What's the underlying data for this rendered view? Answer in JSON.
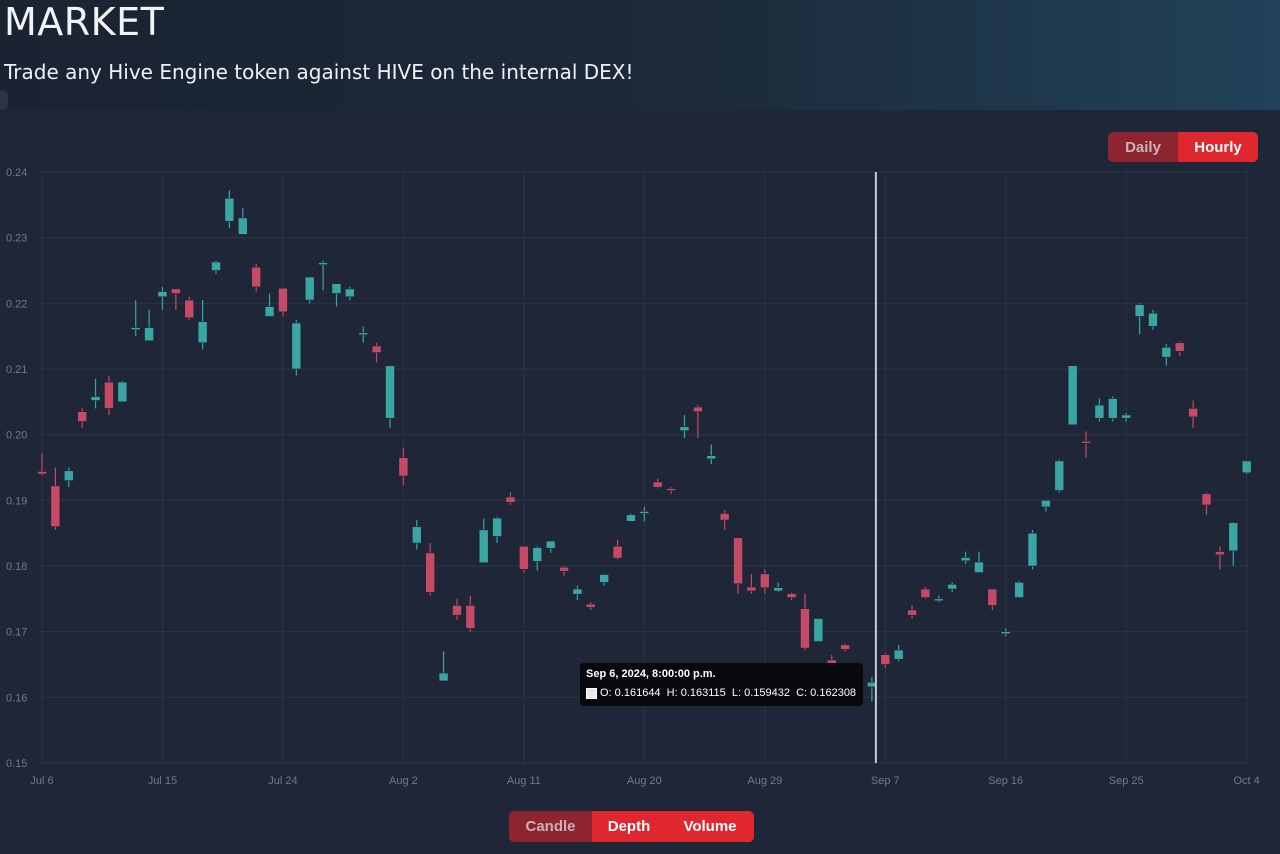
{
  "header": {
    "title": "MARKET",
    "subtitle": "Trade any Hive Engine token against HIVE on the internal DEX!"
  },
  "interval_toggle": {
    "options": [
      "Daily",
      "Hourly"
    ],
    "selected": "Hourly"
  },
  "view_toggle": {
    "options": [
      "Candle",
      "Depth",
      "Volume"
    ],
    "selected": "Candle"
  },
  "tooltip": {
    "date": "Sep 6, 2024, 8:00:00 p.m.",
    "values": "O: 0.161644  H: 0.163115  L: 0.159432  C: 0.162308"
  },
  "colors": {
    "up": "#3aa6a4",
    "down": "#c44a66",
    "accent": "#e0262e",
    "grid": "#2c3548",
    "crosshair": "#c8cdd4"
  },
  "chart_data": {
    "type": "candlestick",
    "title": "",
    "ylim": [
      0.15,
      0.24
    ],
    "y_ticks": [
      "0.15",
      "0.16",
      "0.17",
      "0.18",
      "0.19",
      "0.20",
      "0.21",
      "0.22",
      "0.23",
      "0.24"
    ],
    "x_ticks": [
      "Jul 6",
      "Jul 15",
      "Jul 24",
      "Aug 2",
      "Aug 11",
      "Aug 20",
      "Aug 29",
      "Sep 7",
      "Sep 16",
      "Sep 25",
      "Oct 4"
    ],
    "x_range_days": [
      -0.15,
      90.1
    ],
    "crosshair_day": 62.3,
    "grid": true,
    "candles": [
      {
        "d": 0,
        "o": 0.1944,
        "h": 0.1972,
        "l": 0.1938,
        "c": 0.194
      },
      {
        "d": 1,
        "o": 0.1922,
        "h": 0.195,
        "l": 0.1855,
        "c": 0.186
      },
      {
        "d": 2,
        "o": 0.193,
        "h": 0.195,
        "l": 0.192,
        "c": 0.1945
      },
      {
        "d": 3,
        "o": 0.2035,
        "h": 0.204,
        "l": 0.201,
        "c": 0.202
      },
      {
        "d": 4,
        "o": 0.2052,
        "h": 0.2085,
        "l": 0.204,
        "c": 0.2058
      },
      {
        "d": 5,
        "o": 0.208,
        "h": 0.209,
        "l": 0.203,
        "c": 0.204
      },
      {
        "d": 6,
        "o": 0.205,
        "h": 0.2082,
        "l": 0.205,
        "c": 0.208
      },
      {
        "d": 7,
        "o": 0.216,
        "h": 0.2205,
        "l": 0.215,
        "c": 0.2163
      },
      {
        "d": 8,
        "o": 0.2143,
        "h": 0.219,
        "l": 0.2143,
        "c": 0.2163
      },
      {
        "d": 9,
        "o": 0.221,
        "h": 0.2225,
        "l": 0.219,
        "c": 0.2218
      },
      {
        "d": 10,
        "o": 0.2222,
        "h": 0.2222,
        "l": 0.219,
        "c": 0.2215
      },
      {
        "d": 11,
        "o": 0.2205,
        "h": 0.221,
        "l": 0.2175,
        "c": 0.2178
      },
      {
        "d": 12,
        "o": 0.214,
        "h": 0.2205,
        "l": 0.213,
        "c": 0.2172
      },
      {
        "d": 13,
        "o": 0.225,
        "h": 0.2265,
        "l": 0.2245,
        "c": 0.2263
      },
      {
        "d": 14,
        "o": 0.2325,
        "h": 0.2372,
        "l": 0.2315,
        "c": 0.236
      },
      {
        "d": 15,
        "o": 0.2305,
        "h": 0.2345,
        "l": 0.2305,
        "c": 0.233
      },
      {
        "d": 16,
        "o": 0.2255,
        "h": 0.226,
        "l": 0.2218,
        "c": 0.2225
      },
      {
        "d": 17,
        "o": 0.218,
        "h": 0.2215,
        "l": 0.218,
        "c": 0.2195
      },
      {
        "d": 18,
        "o": 0.2223,
        "h": 0.2223,
        "l": 0.218,
        "c": 0.2187
      },
      {
        "d": 19,
        "o": 0.21,
        "h": 0.2175,
        "l": 0.209,
        "c": 0.217
      },
      {
        "d": 20,
        "o": 0.2205,
        "h": 0.224,
        "l": 0.22,
        "c": 0.224
      },
      {
        "d": 21,
        "o": 0.2262,
        "h": 0.2265,
        "l": 0.222,
        "c": 0.2262
      },
      {
        "d": 22,
        "o": 0.2215,
        "h": 0.223,
        "l": 0.2195,
        "c": 0.223
      },
      {
        "d": 23,
        "o": 0.221,
        "h": 0.2225,
        "l": 0.2205,
        "c": 0.2222
      },
      {
        "d": 24,
        "o": 0.2155,
        "h": 0.2165,
        "l": 0.214,
        "c": 0.2155
      },
      {
        "d": 25,
        "o": 0.2135,
        "h": 0.214,
        "l": 0.211,
        "c": 0.2125
      },
      {
        "d": 26,
        "o": 0.2025,
        "h": 0.2105,
        "l": 0.201,
        "c": 0.2105
      },
      {
        "d": 27,
        "o": 0.1965,
        "h": 0.198,
        "l": 0.1923,
        "c": 0.1937
      },
      {
        "d": 28,
        "o": 0.1835,
        "h": 0.187,
        "l": 0.1825,
        "c": 0.186
      },
      {
        "d": 29,
        "o": 0.182,
        "h": 0.1835,
        "l": 0.1755,
        "c": 0.176
      },
      {
        "d": 30,
        "o": 0.1625,
        "h": 0.167,
        "l": 0.1625,
        "c": 0.1637
      },
      {
        "d": 31,
        "o": 0.174,
        "h": 0.175,
        "l": 0.1718,
        "c": 0.1725
      },
      {
        "d": 32,
        "o": 0.174,
        "h": 0.1755,
        "l": 0.17,
        "c": 0.1705
      },
      {
        "d": 33,
        "o": 0.1805,
        "h": 0.1872,
        "l": 0.1805,
        "c": 0.1855
      },
      {
        "d": 34,
        "o": 0.1845,
        "h": 0.1875,
        "l": 0.1835,
        "c": 0.1873
      },
      {
        "d": 35,
        "o": 0.1905,
        "h": 0.1912,
        "l": 0.1893,
        "c": 0.1897
      },
      {
        "d": 36,
        "o": 0.183,
        "h": 0.183,
        "l": 0.179,
        "c": 0.1795
      },
      {
        "d": 37,
        "o": 0.1807,
        "h": 0.183,
        "l": 0.1793,
        "c": 0.1828
      },
      {
        "d": 38,
        "o": 0.1827,
        "h": 0.1838,
        "l": 0.182,
        "c": 0.1838
      },
      {
        "d": 39,
        "o": 0.1798,
        "h": 0.18,
        "l": 0.1785,
        "c": 0.1792
      },
      {
        "d": 40,
        "o": 0.1757,
        "h": 0.177,
        "l": 0.1748,
        "c": 0.1765
      },
      {
        "d": 41,
        "o": 0.1742,
        "h": 0.1745,
        "l": 0.1733,
        "c": 0.1737
      },
      {
        "d": 42,
        "o": 0.1775,
        "h": 0.1788,
        "l": 0.177,
        "c": 0.1787
      },
      {
        "d": 43,
        "o": 0.183,
        "h": 0.184,
        "l": 0.181,
        "c": 0.1812
      },
      {
        "d": 44,
        "o": 0.1868,
        "h": 0.188,
        "l": 0.1868,
        "c": 0.1878
      },
      {
        "d": 45,
        "o": 0.188,
        "h": 0.189,
        "l": 0.1868,
        "c": 0.1883
      },
      {
        "d": 46,
        "o": 0.1928,
        "h": 0.1933,
        "l": 0.1918,
        "c": 0.192
      },
      {
        "d": 47,
        "o": 0.1918,
        "h": 0.192,
        "l": 0.191,
        "c": 0.1915
      },
      {
        "d": 48,
        "o": 0.2006,
        "h": 0.203,
        "l": 0.1995,
        "c": 0.2012
      },
      {
        "d": 49,
        "o": 0.2042,
        "h": 0.2045,
        "l": 0.1995,
        "c": 0.2035
      },
      {
        "d": 50,
        "o": 0.1963,
        "h": 0.1985,
        "l": 0.1955,
        "c": 0.1968
      },
      {
        "d": 51,
        "o": 0.188,
        "h": 0.1885,
        "l": 0.1855,
        "c": 0.187
      },
      {
        "d": 52,
        "o": 0.1843,
        "h": 0.1843,
        "l": 0.1758,
        "c": 0.1773
      },
      {
        "d": 53,
        "o": 0.1768,
        "h": 0.1788,
        "l": 0.1758,
        "c": 0.1762
      },
      {
        "d": 54,
        "o": 0.1788,
        "h": 0.1795,
        "l": 0.1758,
        "c": 0.1767
      },
      {
        "d": 55,
        "o": 0.1762,
        "h": 0.1775,
        "l": 0.176,
        "c": 0.1767
      },
      {
        "d": 56,
        "o": 0.1758,
        "h": 0.176,
        "l": 0.1748,
        "c": 0.1752
      },
      {
        "d": 57,
        "o": 0.1735,
        "h": 0.1758,
        "l": 0.1672,
        "c": 0.1675
      },
      {
        "d": 58,
        "o": 0.1685,
        "h": 0.172,
        "l": 0.1685,
        "c": 0.172
      },
      {
        "d": 59,
        "o": 0.1657,
        "h": 0.1665,
        "l": 0.1645,
        "c": 0.165
      },
      {
        "d": 60,
        "o": 0.168,
        "h": 0.1682,
        "l": 0.167,
        "c": 0.1673
      },
      {
        "d": 61,
        "o": 0.1648,
        "h": 0.165,
        "l": 0.163,
        "c": 0.1637
      },
      {
        "d": 62,
        "o": 0.1616,
        "h": 0.1631,
        "l": 0.1594,
        "c": 0.1623
      },
      {
        "d": 63,
        "o": 0.1665,
        "h": 0.1667,
        "l": 0.1645,
        "c": 0.165
      },
      {
        "d": 64,
        "o": 0.1658,
        "h": 0.168,
        "l": 0.1655,
        "c": 0.1672
      },
      {
        "d": 65,
        "o": 0.1733,
        "h": 0.174,
        "l": 0.172,
        "c": 0.1725
      },
      {
        "d": 66,
        "o": 0.1765,
        "h": 0.1768,
        "l": 0.175,
        "c": 0.1752
      },
      {
        "d": 67,
        "o": 0.175,
        "h": 0.1755,
        "l": 0.1745,
        "c": 0.175
      },
      {
        "d": 68,
        "o": 0.1765,
        "h": 0.1775,
        "l": 0.176,
        "c": 0.1772
      },
      {
        "d": 69,
        "o": 0.1808,
        "h": 0.1822,
        "l": 0.1803,
        "c": 0.1813
      },
      {
        "d": 70,
        "o": 0.179,
        "h": 0.1822,
        "l": 0.179,
        "c": 0.1806
      },
      {
        "d": 71,
        "o": 0.1765,
        "h": 0.1765,
        "l": 0.1733,
        "c": 0.174
      },
      {
        "d": 72,
        "o": 0.1698,
        "h": 0.1705,
        "l": 0.1693,
        "c": 0.17
      },
      {
        "d": 73,
        "o": 0.1752,
        "h": 0.1777,
        "l": 0.1752,
        "c": 0.1775
      },
      {
        "d": 74,
        "o": 0.18,
        "h": 0.1855,
        "l": 0.1795,
        "c": 0.185
      },
      {
        "d": 75,
        "o": 0.189,
        "h": 0.19,
        "l": 0.1883,
        "c": 0.19
      },
      {
        "d": 76,
        "o": 0.1915,
        "h": 0.1962,
        "l": 0.1912,
        "c": 0.196
      },
      {
        "d": 77,
        "o": 0.2015,
        "h": 0.2105,
        "l": 0.2015,
        "c": 0.2105
      },
      {
        "d": 78,
        "o": 0.199,
        "h": 0.2005,
        "l": 0.1965,
        "c": 0.1988
      },
      {
        "d": 79,
        "o": 0.2025,
        "h": 0.2055,
        "l": 0.202,
        "c": 0.2045
      },
      {
        "d": 80,
        "o": 0.2025,
        "h": 0.2058,
        "l": 0.202,
        "c": 0.2055
      },
      {
        "d": 81,
        "o": 0.2025,
        "h": 0.2033,
        "l": 0.202,
        "c": 0.203
      },
      {
        "d": 82,
        "o": 0.218,
        "h": 0.22,
        "l": 0.2153,
        "c": 0.2198
      },
      {
        "d": 83,
        "o": 0.2165,
        "h": 0.219,
        "l": 0.216,
        "c": 0.2185
      },
      {
        "d": 84,
        "o": 0.2118,
        "h": 0.2138,
        "l": 0.2105,
        "c": 0.2133
      },
      {
        "d": 85,
        "o": 0.214,
        "h": 0.2142,
        "l": 0.212,
        "c": 0.2127
      },
      {
        "d": 86,
        "o": 0.204,
        "h": 0.2052,
        "l": 0.201,
        "c": 0.2027
      },
      {
        "d": 87,
        "o": 0.191,
        "h": 0.1912,
        "l": 0.1878,
        "c": 0.1893
      },
      {
        "d": 88,
        "o": 0.1822,
        "h": 0.183,
        "l": 0.1795,
        "c": 0.1817
      },
      {
        "d": 89,
        "o": 0.1823,
        "h": 0.1867,
        "l": 0.18,
        "c": 0.1866
      },
      {
        "d": 90,
        "o": 0.1942,
        "h": 0.196,
        "l": 0.194,
        "c": 0.196
      }
    ]
  }
}
